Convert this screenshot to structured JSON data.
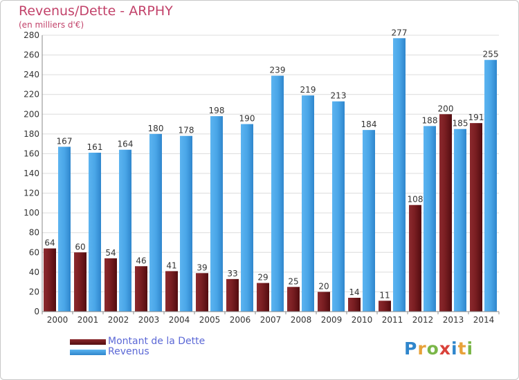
{
  "title": "Revenus/Dette - ARPHY",
  "subtitle": "(en milliers d'€)",
  "legend": {
    "debt_label": "Montant de la Dette",
    "revenue_label": "Revenus"
  },
  "logo_text": "Proxiti",
  "colors": {
    "title": "#c2426a",
    "debt": "#6e1619",
    "revenue": "#3d97dd",
    "legend_text": "#5b68d6"
  },
  "chart_data": {
    "type": "bar",
    "categories": [
      "2000",
      "2001",
      "2002",
      "2003",
      "2004",
      "2005",
      "2006",
      "2007",
      "2008",
      "2009",
      "2010",
      "2011",
      "2012",
      "2013",
      "2014"
    ],
    "series": [
      {
        "name": "Montant de la Dette",
        "values": [
          64,
          60,
          54,
          46,
          41,
          39,
          33,
          29,
          25,
          20,
          14,
          11,
          108,
          200,
          191
        ]
      },
      {
        "name": "Revenus",
        "values": [
          167,
          161,
          164,
          180,
          178,
          198,
          190,
          239,
          219,
          213,
          184,
          277,
          188,
          185,
          255
        ]
      }
    ],
    "value_labels": {
      "debt": [
        "64",
        "60",
        "54",
        "46",
        "41",
        "39",
        "33",
        "29",
        "25",
        "20",
        "14",
        "11",
        "108",
        "200",
        "191"
      ],
      "revenue": [
        "167",
        "161",
        "164",
        "180",
        "178",
        "198",
        "190",
        "239",
        "219",
        "213",
        "184",
        "277",
        "188",
        "185",
        "255"
      ]
    },
    "ylim": [
      0,
      280
    ],
    "yticks": [
      0,
      20,
      40,
      60,
      80,
      100,
      120,
      140,
      160,
      180,
      200,
      220,
      240,
      260,
      280
    ],
    "grid": true,
    "legend_position": "bottom-left"
  }
}
